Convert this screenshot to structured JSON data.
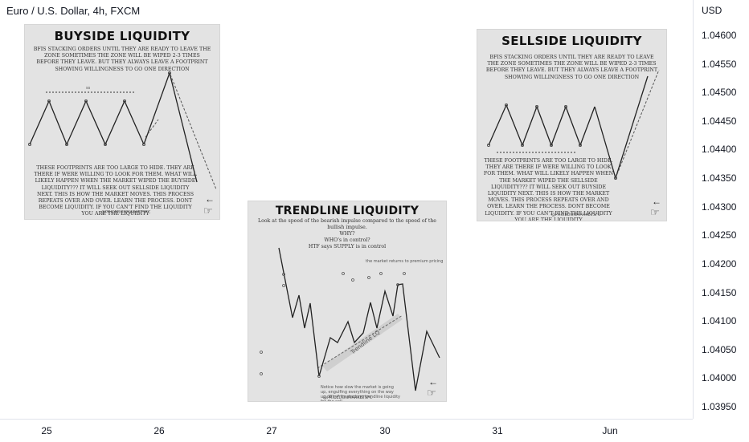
{
  "header": {
    "symbol_title": "Euro / U.S. Dollar, 4h, FXCM"
  },
  "price_axis": {
    "currency": "USD",
    "ticks": [
      "1.04600",
      "1.04550",
      "1.04500",
      "1.04450",
      "1.04400",
      "1.04350",
      "1.04300",
      "1.04250",
      "1.04200",
      "1.04150",
      "1.04100",
      "1.04050",
      "1.04000",
      "1.03950"
    ]
  },
  "time_axis": {
    "ticks": [
      "25",
      "26",
      "27",
      "30",
      "31",
      "Jun"
    ]
  },
  "cards": {
    "buyside": {
      "title": "BUYSIDE LIQUIDITY",
      "intro": "BFIS STACKING ORDERS UNTIL THEY ARE READY TO LEAVE THE ZONE SOMETIMES THE ZONE WILL BE WIPED 2-3 TIMES BEFORE THEY LEAVE. BUT THEY ALWAYS LEAVE A FOOTPRINT SHOWING WILLINGNESS TO GO ONE DIRECTION",
      "level_label": "ss",
      "body": "THESE FOOTPRINTS ARE TOO LARGE TO HIDE. THEY ARE THERE IF WERE WILLING TO LOOK FOR THEM. WHAT WILL LIKELY HAPPEN WHEN THE MARKET WIPED THE BUYSIDE LIQUIDITY??? IT WILL SEEK OUT SELLSIDE LIQUIDITY NEXT. THIS IS HOW THE MARKET MOVES. THIS PROCESS REPEATS OVER AND OVER. LEARN THE PROCESS. DONT BECOME LIQUIDITY. IF YOU CAN'T FIND THE LIQUIDITY YOU ARE THE LIQUIDITY",
      "footer": "@PRICEDONMARKETSFC"
    },
    "sellside": {
      "title": "SELLSIDE LIQUIDITY",
      "intro": "BFIS STACKING ORDERS UNTIL THEY ARE READY TO LEAVE THE ZONE SOMETIMES THE ZONE WILL BE WIPED 2-3 TIMES BEFORE THEY LEAVE. BUT THEY ALWAYS LEAVE A FOOTPRINT SHOWING WILLINGNESS TO GO ONE DIRECTION",
      "body": "THESE FOOTPRINTS ARE TOO LARGE TO HIDE. THEY ARE THERE IF WERE WILLING TO LOOK FOR THEM. WHAT WILL LIKELY HAPPEN WHEN THE MARKET WIPED THE SELLSIDE LIQUIDITY??? IT WILL SEEK OUT BUYSIDE LIQUIDITY NEXT. THIS IS HOW THE MARKET MOVES. THIS PROCESS REPEATS OVER AND OVER. LEARN THE PROCESS. DONT BECOME LIQUIDITY. IF YOU CAN'T FIND THE LIQUIDITY YOU ARE THE LIQUIDITY",
      "footer": "@PRICEDONMARKETSFC"
    },
    "trendline": {
      "title": "TRENDLINE LIQUIDITY",
      "intro_1": "Look at the speed of the bearish impulse compared to the speed of the bullish impulse.",
      "intro_2": "WHY?",
      "intro_3": "WHO's in control?",
      "intro_4": "HTF says SUPPLY is in control",
      "note_top": "the market returns to premium pricing",
      "diagonal_label": "Trendline LQ",
      "note_bottom": "Notice how slow the market is going up, engulfing everything on the way up. Why? Its stacking trendline liquidity for the sell.",
      "footer": "@PRICEDONMARKETSFC"
    }
  },
  "icons": {
    "arrow": "left-arrow-icon",
    "hand": "pointing-hand-icon"
  },
  "colors": {
    "card_bg": "#e3e3e3",
    "line": "#222222",
    "axis_border": "#e0e3eb"
  },
  "chart_data": {
    "type": "line",
    "title": "Euro / U.S. Dollar, 4h, FXCM",
    "ylabel": "USD",
    "ylim": [
      1.0392,
      1.0464
    ],
    "y_ticks": [
      1.046,
      1.0455,
      1.045,
      1.0445,
      1.044,
      1.0435,
      1.043,
      1.0425,
      1.042,
      1.0415,
      1.041,
      1.0405,
      1.04,
      1.0395
    ],
    "x_ticks": [
      "25",
      "26",
      "27",
      "30",
      "31",
      "Jun"
    ],
    "grid": false,
    "series": []
  }
}
